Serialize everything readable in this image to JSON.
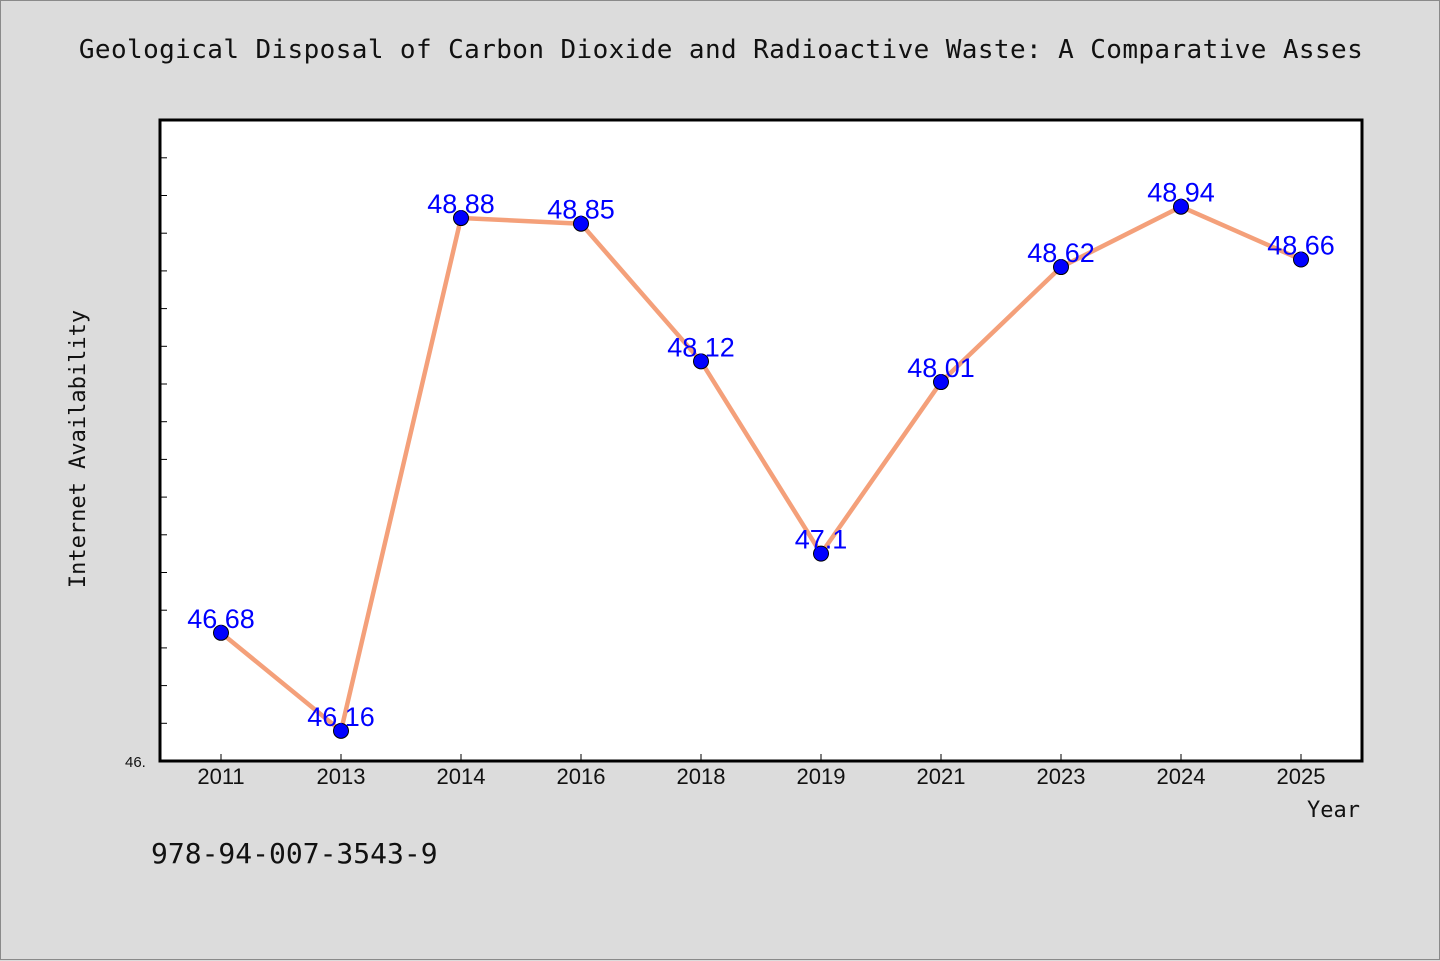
{
  "title": "Geological Disposal of Carbon Dioxide and Radioactive Waste: A Comparative Asses",
  "isbn": "978-94-007-3543-9",
  "colors": {
    "background": "#dcdcdc",
    "plot_bg": "#ffffff",
    "line": "#f4a07a",
    "marker": "#0000ff",
    "label": "#0000ff"
  },
  "chart_data": {
    "type": "line",
    "title": "Geological Disposal of Carbon Dioxide and Radioactive Waste: A Comparative Asses",
    "xlabel": "Year",
    "ylabel": "Internet Availability",
    "categories": [
      "2011",
      "2013",
      "2014",
      "2016",
      "2018",
      "2019",
      "2021",
      "2023",
      "2024",
      "2025"
    ],
    "series": [
      {
        "values": [
          46.68,
          46.16,
          48.88,
          48.85,
          48.12,
          47.1,
          48.01,
          48.62,
          48.94,
          48.66
        ],
        "labels": [
          "46.68",
          "46.16",
          "48.88",
          "48.85",
          "48.12",
          "47.1",
          "48.01",
          "48.62",
          "48.94",
          "48.66"
        ]
      }
    ],
    "ylim": [
      46.0,
      49.4
    ],
    "ymin_label": "46.",
    "grid": false,
    "legend": "none"
  }
}
